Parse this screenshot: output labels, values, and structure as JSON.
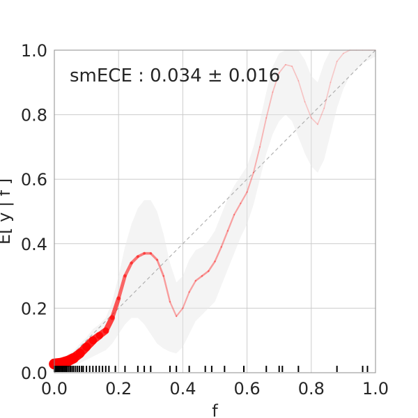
{
  "chart_data": {
    "type": "line",
    "title": "",
    "xlabel": "f",
    "ylabel": "E[ y | f ]",
    "xlim": [
      0.0,
      1.0
    ],
    "ylim": [
      0.0,
      1.0
    ],
    "grid": true,
    "annotation": "smECE : 0.034 ± 0.016",
    "xticks": [
      0.0,
      0.2,
      0.4,
      0.6,
      0.8,
      1.0
    ],
    "xtick_labels": [
      "0.0",
      "0.2",
      "0.4",
      "0.6",
      "0.8",
      "1.0"
    ],
    "yticks": [
      0.0,
      0.2,
      0.4,
      0.6,
      0.8,
      1.0
    ],
    "ytick_labels": [
      "0.0",
      "0.2",
      "0.4",
      "0.6",
      "0.8",
      "1.0"
    ],
    "colors": {
      "curve": "#ff0000",
      "band": "#e6e6e6",
      "diagonal": "#b0b0b0",
      "grid": "#cccccc",
      "rug": "#000000"
    },
    "reference_line": {
      "x": [
        0.0,
        1.0
      ],
      "y": [
        0.0,
        1.0
      ]
    },
    "series": [
      {
        "x": [
          0.0,
          0.02,
          0.04,
          0.06,
          0.08,
          0.1,
          0.12,
          0.14,
          0.16,
          0.18,
          0.2,
          0.22,
          0.24,
          0.26,
          0.28,
          0.3,
          0.32,
          0.34,
          0.36,
          0.38,
          0.4,
          0.42,
          0.44,
          0.46,
          0.48,
          0.5,
          0.52,
          0.54,
          0.56,
          0.58,
          0.6,
          0.62,
          0.64,
          0.66,
          0.68,
          0.7,
          0.72,
          0.74,
          0.76,
          0.78,
          0.8,
          0.82,
          0.84,
          0.86,
          0.88,
          0.9,
          0.92,
          0.94,
          0.96,
          0.98,
          1.0
        ],
        "y": [
          0.027,
          0.029,
          0.035,
          0.045,
          0.06,
          0.08,
          0.1,
          0.115,
          0.13,
          0.17,
          0.23,
          0.3,
          0.34,
          0.36,
          0.37,
          0.37,
          0.35,
          0.3,
          0.22,
          0.175,
          0.2,
          0.25,
          0.285,
          0.3,
          0.315,
          0.345,
          0.39,
          0.44,
          0.49,
          0.525,
          0.56,
          0.62,
          0.7,
          0.79,
          0.87,
          0.93,
          0.955,
          0.95,
          0.905,
          0.84,
          0.79,
          0.77,
          0.82,
          0.9,
          0.965,
          0.99,
          1.0,
          1.0,
          1.0,
          1.0,
          1.0
        ],
        "weight": [
          1.0,
          1.0,
          1.0,
          0.95,
          0.9,
          0.88,
          0.85,
          0.8,
          0.75,
          0.65,
          0.55,
          0.5,
          0.48,
          0.45,
          0.42,
          0.4,
          0.35,
          0.3,
          0.25,
          0.22,
          0.22,
          0.24,
          0.27,
          0.3,
          0.3,
          0.28,
          0.27,
          0.26,
          0.25,
          0.24,
          0.22,
          0.2,
          0.17,
          0.15,
          0.13,
          0.12,
          0.11,
          0.1,
          0.09,
          0.08,
          0.08,
          0.08,
          0.08,
          0.07,
          0.07,
          0.06,
          0.06,
          0.05,
          0.05,
          0.05,
          0.05
        ],
        "band_lower": [
          0.01,
          0.012,
          0.016,
          0.022,
          0.03,
          0.04,
          0.05,
          0.06,
          0.07,
          0.09,
          0.12,
          0.15,
          0.17,
          0.17,
          0.15,
          0.12,
          0.09,
          0.075,
          0.065,
          0.06,
          0.08,
          0.12,
          0.16,
          0.18,
          0.2,
          0.22,
          0.27,
          0.32,
          0.37,
          0.42,
          0.46,
          0.52,
          0.6,
          0.68,
          0.74,
          0.78,
          0.8,
          0.78,
          0.73,
          0.68,
          0.64,
          0.62,
          0.66,
          0.74,
          0.82,
          0.88,
          0.92,
          0.94,
          0.96,
          0.97,
          0.98
        ],
        "band_upper": [
          0.04,
          0.046,
          0.055,
          0.068,
          0.09,
          0.11,
          0.135,
          0.15,
          0.17,
          0.22,
          0.3,
          0.39,
          0.46,
          0.51,
          0.535,
          0.535,
          0.5,
          0.43,
          0.34,
          0.28,
          0.3,
          0.35,
          0.38,
          0.39,
          0.41,
          0.44,
          0.49,
          0.54,
          0.58,
          0.61,
          0.64,
          0.7,
          0.78,
          0.87,
          0.95,
          0.99,
          1.0,
          1.0,
          1.0,
          0.97,
          0.92,
          0.9,
          0.96,
          1.0,
          1.0,
          1.0,
          1.0,
          1.0,
          1.0,
          1.0,
          1.0
        ]
      }
    ],
    "rug": [
      0.0,
      0.003,
      0.006,
      0.009,
      0.012,
      0.016,
      0.02,
      0.024,
      0.028,
      0.032,
      0.036,
      0.04,
      0.045,
      0.05,
      0.055,
      0.06,
      0.066,
      0.072,
      0.078,
      0.085,
      0.09,
      0.1,
      0.11,
      0.12,
      0.13,
      0.14,
      0.15,
      0.16,
      0.17,
      0.19,
      0.22,
      0.26,
      0.28,
      0.3,
      0.36,
      0.38,
      0.42,
      0.47,
      0.49,
      0.53,
      0.59,
      0.66,
      0.7,
      0.71,
      0.76,
      0.88,
      0.96,
      0.975
    ]
  }
}
